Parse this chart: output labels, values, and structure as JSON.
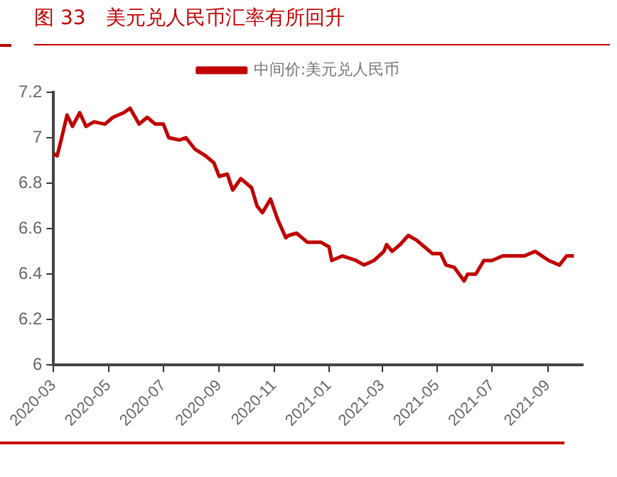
{
  "chart_data": {
    "type": "line",
    "title": "图 33　美元兑人民币汇率有所回升",
    "x": [
      "2020-03-01",
      "2020-03-05",
      "2020-03-10",
      "2020-03-16",
      "2020-03-22",
      "2020-03-30",
      "2020-04-06",
      "2020-04-15",
      "2020-04-27",
      "2020-05-06",
      "2020-05-18",
      "2020-05-25",
      "2020-06-04",
      "2020-06-13",
      "2020-06-22",
      "2020-07-01",
      "2020-07-07",
      "2020-07-19",
      "2020-07-26",
      "2020-08-05",
      "2020-08-17",
      "2020-08-26",
      "2020-09-01",
      "2020-09-10",
      "2020-09-16",
      "2020-09-25",
      "2020-10-07",
      "2020-10-13",
      "2020-10-19",
      "2020-10-28",
      "2020-11-05",
      "2020-11-14",
      "2020-11-17",
      "2020-11-26",
      "2020-12-08",
      "2020-12-23",
      "2021-01-01",
      "2021-01-04",
      "2021-01-16",
      "2021-01-31",
      "2021-02-09",
      "2021-02-20",
      "2021-03-03",
      "2021-03-06",
      "2021-03-12",
      "2021-03-21",
      "2021-03-30",
      "2021-04-08",
      "2021-04-17",
      "2021-04-26",
      "2021-05-05",
      "2021-05-11",
      "2021-05-20",
      "2021-05-31",
      "2021-06-04",
      "2021-06-13",
      "2021-06-22",
      "2021-07-01",
      "2021-07-13",
      "2021-07-28",
      "2021-08-06",
      "2021-08-18",
      "2021-09-02",
      "2021-09-14",
      "2021-09-22",
      "2021-09-30"
    ],
    "series": [
      {
        "name": "中间价:美元兑人民币",
        "color": "#c00000",
        "values": [
          6.93,
          6.92,
          7.0,
          7.1,
          7.05,
          7.11,
          7.05,
          7.07,
          7.06,
          7.09,
          7.11,
          7.13,
          7.06,
          7.09,
          7.06,
          7.06,
          7.0,
          6.99,
          7.0,
          6.95,
          6.92,
          6.89,
          6.83,
          6.84,
          6.77,
          6.82,
          6.78,
          6.7,
          6.67,
          6.73,
          6.64,
          6.56,
          6.57,
          6.58,
          6.54,
          6.54,
          6.52,
          6.46,
          6.48,
          6.46,
          6.44,
          6.46,
          6.5,
          6.53,
          6.5,
          6.53,
          6.57,
          6.55,
          6.52,
          6.49,
          6.49,
          6.44,
          6.43,
          6.37,
          6.4,
          6.4,
          6.46,
          6.46,
          6.48,
          6.48,
          6.48,
          6.5,
          6.46,
          6.44,
          6.48,
          6.48
        ]
      }
    ],
    "xlim": [
      "2020-03-01",
      "2021-10-10"
    ],
    "xticks": [
      "2020-03",
      "2020-05",
      "2020-07",
      "2020-09",
      "2020-11",
      "2021-01",
      "2021-03",
      "2021-05",
      "2021-07",
      "2021-09"
    ],
    "ylim": [
      6,
      7.2
    ],
    "yticks": [
      6,
      6.2,
      6.4,
      6.6,
      6.8,
      7,
      7.2
    ],
    "grid": false,
    "legend": "top",
    "marker": "none",
    "line_style": "solid"
  }
}
